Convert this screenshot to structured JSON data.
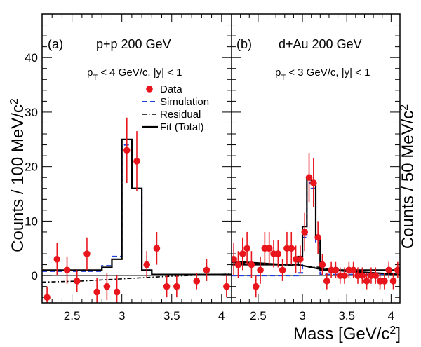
{
  "chart_data": [
    {
      "type": "scatter",
      "panel_label": "(a)",
      "title": "p+p 200 GeV",
      "cut": [
        "p",
        "T",
        " < 4 GeV/c, |y| < 1"
      ],
      "ylabel": [
        "Counts / 100 MeV/c",
        "2"
      ],
      "xlim": [
        2.2,
        4.1
      ],
      "ylim": [
        -5,
        48
      ],
      "x_ticks": [
        "2.5",
        "3",
        "3.5",
        "4"
      ],
      "y_ticks": [
        "0",
        "10",
        "20",
        "30",
        "40"
      ],
      "legend": {
        "placement": "top-right",
        "entries": [
          "Data",
          "Simulation",
          "Residual",
          "Fit (Total)"
        ]
      },
      "data_points": [
        {
          "x": 2.25,
          "y": -4,
          "err": 2.0
        },
        {
          "x": 2.35,
          "y": 3,
          "err": 3.0
        },
        {
          "x": 2.45,
          "y": 1,
          "err": 2.5
        },
        {
          "x": 2.55,
          "y": -1,
          "err": 2.0
        },
        {
          "x": 2.65,
          "y": 4,
          "err": 3.0
        },
        {
          "x": 2.75,
          "y": -3,
          "err": 2.5
        },
        {
          "x": 2.85,
          "y": -2,
          "err": 2.5
        },
        {
          "x": 2.95,
          "y": -3,
          "err": 3.0
        },
        {
          "x": 3.05,
          "y": 23,
          "err": 6.0
        },
        {
          "x": 3.15,
          "y": 21,
          "err": 5.5
        },
        {
          "x": 3.25,
          "y": 2,
          "err": 2.5
        },
        {
          "x": 3.35,
          "y": 5,
          "err": 3.0
        },
        {
          "x": 3.45,
          "y": -2,
          "err": 2.0
        },
        {
          "x": 3.55,
          "y": -2,
          "err": 2.0
        },
        {
          "x": 3.75,
          "y": -1,
          "err": 1.5
        },
        {
          "x": 3.85,
          "y": 1,
          "err": 2.0
        },
        {
          "x": 4.05,
          "y": -2,
          "err": 2.0
        }
      ],
      "fit_total_steps": {
        "edges": [
          2.2,
          2.8,
          2.9,
          3.0,
          3.1,
          3.2,
          3.3,
          4.1
        ],
        "values": [
          1.0,
          1.5,
          3.0,
          25.0,
          16.0,
          1.0,
          0.2
        ]
      },
      "simulation_steps": {
        "edges": [
          2.2,
          2.8,
          2.9,
          3.0,
          3.1,
          3.2,
          3.3,
          4.1
        ],
        "values": [
          0.8,
          1.8,
          3.5,
          24.0,
          16.0,
          1.0,
          0.2
        ]
      },
      "residual_curve": {
        "x": [
          2.2,
          2.6,
          3.0,
          3.4,
          3.8,
          4.1
        ],
        "y": [
          -1.2,
          -1.0,
          -0.6,
          -0.2,
          0.1,
          0.3
        ]
      }
    },
    {
      "type": "scatter",
      "panel_label": "(b)",
      "title": "d+Au 200 GeV",
      "cut": [
        "p",
        "T",
        " < 3 GeV/c, |y| < 1"
      ],
      "ylabel": [
        "Counts / 50 MeV/c",
        "2"
      ],
      "xlabel": [
        "Mass [GeV/c",
        "2",
        "]"
      ],
      "xlim": [
        2.2,
        4.1
      ],
      "ylim": [
        -5,
        48
      ],
      "x_ticks": [
        "2.5",
        "3",
        "3.5",
        "4"
      ],
      "data_points": [
        {
          "x": 2.225,
          "y": 3,
          "err": 3.0
        },
        {
          "x": 2.275,
          "y": 2,
          "err": 2.5
        },
        {
          "x": 2.325,
          "y": 4,
          "err": 3.0
        },
        {
          "x": 2.375,
          "y": 5,
          "err": 3.0
        },
        {
          "x": 2.425,
          "y": 2,
          "err": 2.5
        },
        {
          "x": 2.475,
          "y": -2,
          "err": 2.0
        },
        {
          "x": 2.525,
          "y": 1,
          "err": 2.5
        },
        {
          "x": 2.575,
          "y": 5,
          "err": 3.0
        },
        {
          "x": 2.625,
          "y": 5,
          "err": 3.0
        },
        {
          "x": 2.675,
          "y": 4,
          "err": 2.5
        },
        {
          "x": 2.725,
          "y": 4,
          "err": 2.5
        },
        {
          "x": 2.775,
          "y": 1,
          "err": 2.0
        },
        {
          "x": 2.825,
          "y": 5,
          "err": 3.0
        },
        {
          "x": 2.875,
          "y": 5,
          "err": 3.0
        },
        {
          "x": 2.925,
          "y": 3,
          "err": 2.5
        },
        {
          "x": 2.975,
          "y": 3,
          "err": 2.5
        },
        {
          "x": 3.025,
          "y": 8,
          "err": 3.5
        },
        {
          "x": 3.075,
          "y": 18,
          "err": 4.5
        },
        {
          "x": 3.125,
          "y": 17,
          "err": 4.5
        },
        {
          "x": 3.175,
          "y": 7,
          "err": 3.0
        },
        {
          "x": 3.225,
          "y": 2,
          "err": 2.0
        },
        {
          "x": 3.275,
          "y": -1,
          "err": 1.5
        },
        {
          "x": 3.325,
          "y": 1,
          "err": 1.5
        },
        {
          "x": 3.375,
          "y": 1,
          "err": 1.5
        },
        {
          "x": 3.425,
          "y": 0,
          "err": 1.5
        },
        {
          "x": 3.475,
          "y": 0,
          "err": 1.5
        },
        {
          "x": 3.525,
          "y": 1,
          "err": 1.5
        },
        {
          "x": 3.575,
          "y": 1,
          "err": 1.5
        },
        {
          "x": 3.625,
          "y": 0,
          "err": 1.5
        },
        {
          "x": 3.675,
          "y": 0,
          "err": 1.5
        },
        {
          "x": 3.725,
          "y": -1,
          "err": 1.5
        },
        {
          "x": 3.775,
          "y": 0,
          "err": 1.5
        },
        {
          "x": 3.825,
          "y": 0,
          "err": 1.5
        },
        {
          "x": 3.875,
          "y": -1,
          "err": 1.5
        },
        {
          "x": 3.925,
          "y": -1,
          "err": 1.5
        },
        {
          "x": 3.975,
          "y": 1,
          "err": 1.5
        },
        {
          "x": 4.025,
          "y": -1,
          "err": 1.5
        },
        {
          "x": 4.075,
          "y": 1,
          "err": 1.5
        }
      ],
      "fit_total_steps": {
        "edges": [
          2.2,
          2.95,
          3.0,
          3.05,
          3.1,
          3.15,
          3.2,
          4.1
        ],
        "values": [
          2.0,
          3.5,
          9.0,
          18.0,
          17.0,
          7.0,
          1.0
        ]
      },
      "fit_total_curve": {
        "x": [
          2.2,
          2.5,
          2.8,
          2.95,
          3.2,
          3.5,
          3.8,
          4.1
        ],
        "y": [
          2.6,
          2.3,
          2.0,
          2.0,
          1.2,
          0.8,
          0.5,
          0.2
        ]
      },
      "simulation_steps": {
        "edges": [
          2.2,
          2.95,
          3.0,
          3.05,
          3.1,
          3.15,
          3.2,
          4.1
        ],
        "values": [
          0.0,
          0.5,
          7.0,
          17.0,
          16.0,
          6.0,
          0.2
        ]
      },
      "residual_curve": {
        "x": [
          2.2,
          2.5,
          2.8,
          3.0,
          3.2,
          3.5,
          3.8,
          4.1
        ],
        "y": [
          2.4,
          2.1,
          1.9,
          1.8,
          1.5,
          0.8,
          0.4,
          0.1
        ]
      }
    }
  ]
}
